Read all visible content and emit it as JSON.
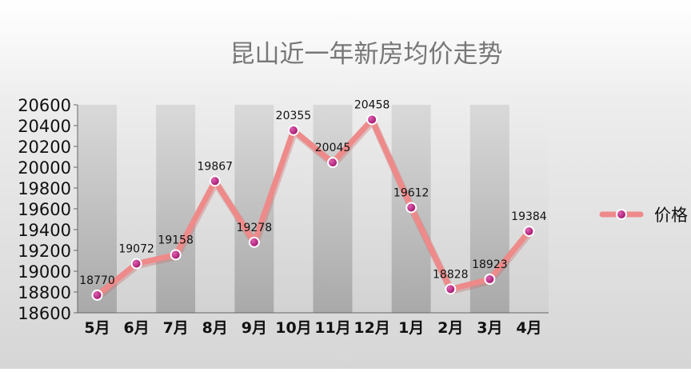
{
  "chart_data": {
    "type": "line",
    "title": "昆山近一年新房均价走势",
    "xlabel": "",
    "ylabel": "",
    "categories": [
      "5月",
      "6月",
      "7月",
      "8月",
      "9月",
      "10月",
      "11月",
      "12月",
      "1月",
      "2月",
      "3月",
      "4月"
    ],
    "series": [
      {
        "name": "价格",
        "values": [
          18770,
          19072,
          19158,
          19867,
          19278,
          20355,
          20045,
          20458,
          19612,
          18828,
          18923,
          19384
        ]
      }
    ],
    "ylim": [
      18600,
      20600
    ],
    "yticks": [
      18600,
      18800,
      19000,
      19200,
      19400,
      19600,
      19800,
      20000,
      20200,
      20400,
      20600
    ],
    "data_labels": true,
    "grid": false,
    "legend": "right",
    "colors": {
      "line": "#ee8a8a",
      "marker_fill": "#b0187a",
      "marker_stroke": "#ffffff",
      "band_dark": "#bdbdbd",
      "band_light": "#e6e6e6",
      "axis": "#666666",
      "title": "#777777",
      "text": "#111111"
    }
  }
}
